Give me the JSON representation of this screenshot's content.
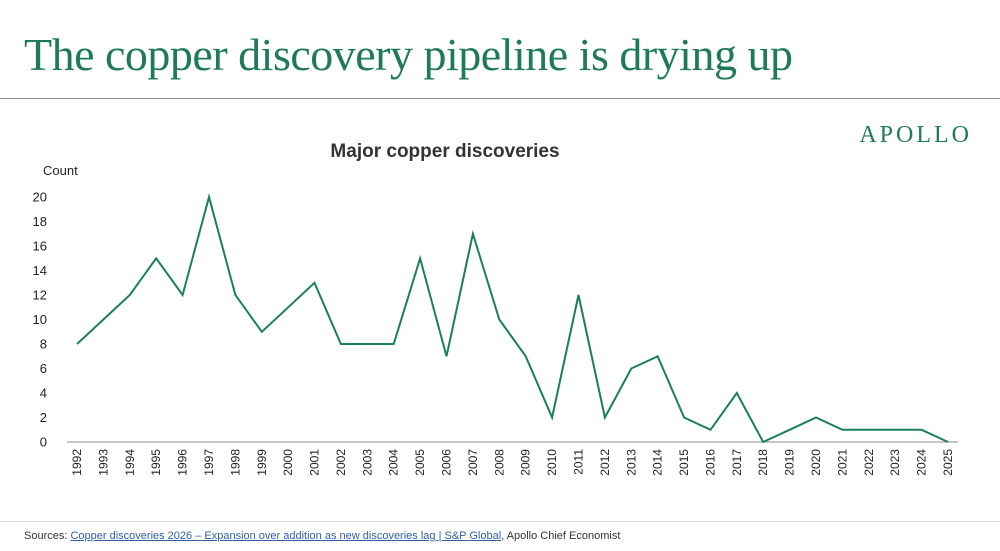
{
  "header": {
    "title": "The copper discovery pipeline is drying up"
  },
  "logo": {
    "text": "APOLLO"
  },
  "footer": {
    "prefix": "Sources: ",
    "link_text": "Copper discoveries 2026 – Expansion over addition as new discoveries lag | S&P Global",
    "suffix": ", Apollo Chief Economist"
  },
  "colors": {
    "accent": "#1f7a5c",
    "line": "#1a7f5f",
    "link": "#2f5fa6"
  },
  "chart_data": {
    "type": "line",
    "title": "Major copper discoveries",
    "ylabel": "Count",
    "xlabel": "",
    "ylim": [
      0,
      20
    ],
    "yticks": [
      0,
      2,
      4,
      6,
      8,
      10,
      12,
      14,
      16,
      18,
      20
    ],
    "grid": false,
    "x": [
      "1992",
      "1993",
      "1994",
      "1995",
      "1996",
      "1997",
      "1998",
      "1999",
      "2000",
      "2001",
      "2002",
      "2003",
      "2004",
      "2005",
      "2006",
      "2007",
      "2008",
      "2009",
      "2010",
      "2011",
      "2012",
      "2013",
      "2014",
      "2015",
      "2016",
      "2017",
      "2018",
      "2019",
      "2020",
      "2021",
      "2022",
      "2023",
      "2024",
      "2025"
    ],
    "series": [
      {
        "values": [
          8,
          10,
          12,
          15,
          12,
          20,
          12,
          9,
          11,
          13,
          8,
          8,
          8,
          15,
          7,
          17,
          10,
          7,
          2,
          12,
          2,
          6,
          7,
          2,
          1,
          4,
          0,
          1,
          2,
          1,
          1,
          1,
          1,
          0
        ]
      }
    ]
  }
}
